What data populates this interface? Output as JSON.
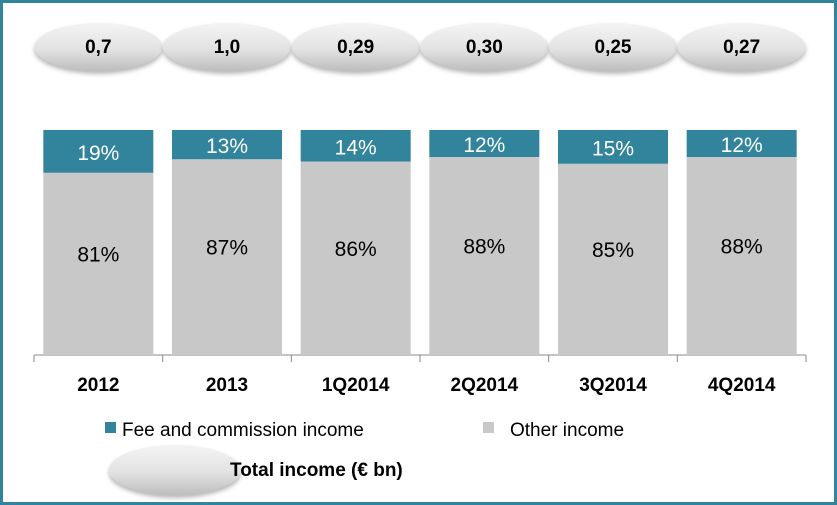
{
  "chart_data": {
    "type": "stacked_bar",
    "categories": [
      "2012",
      "2013",
      "1Q2014",
      "2Q2014",
      "3Q2014",
      "4Q2014"
    ],
    "series": [
      {
        "name": "Fee and commission income",
        "color": "#31849b",
        "values": [
          19,
          13,
          14,
          12,
          15,
          12
        ],
        "value_labels": [
          "19%",
          "13%",
          "14%",
          "12%",
          "15%",
          "12%"
        ]
      },
      {
        "name": "Other income",
        "color": "#c8c8c8",
        "values": [
          81,
          87,
          86,
          88,
          85,
          88
        ],
        "value_labels": [
          "81%",
          "87%",
          "86%",
          "88%",
          "85%",
          "88%"
        ]
      }
    ],
    "totals": {
      "name": "Total income (€ bn)",
      "values": [
        0.7,
        1.0,
        0.29,
        0.3,
        0.25,
        0.27
      ],
      "value_labels": [
        "0,7",
        "1,0",
        "0,29",
        "0,30",
        "0,25",
        "0,27"
      ]
    }
  }
}
